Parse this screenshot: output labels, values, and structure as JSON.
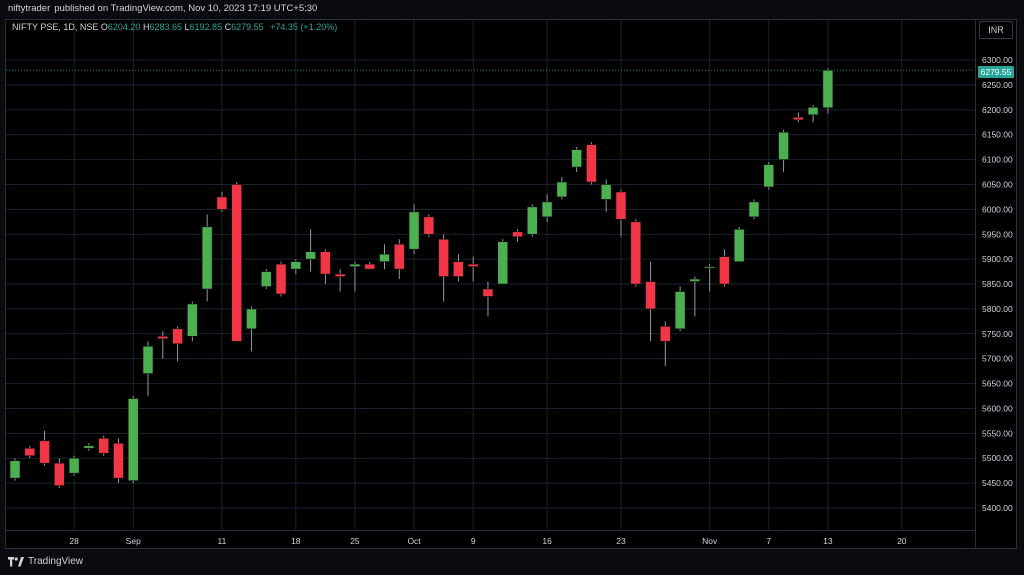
{
  "publisher": {
    "author": "niftytrader",
    "text": "published on TradingView.com, Nov 10, 2023 17:19 UTC+5:30"
  },
  "legend": {
    "symbol": "NIFTY PSE, 1D, NSE",
    "open_label": "O",
    "open": "6204.20",
    "high_label": "H",
    "high": "6283.65",
    "low_label": "L",
    "low": "6192.85",
    "close_label": "C",
    "close": "6279.55",
    "change": "+74.35 (+1.20%)"
  },
  "currency_button": "INR",
  "last_price": "6279.55",
  "footer": {
    "brand": "TradingView"
  },
  "colors": {
    "up": "#26a69a",
    "up_candle": "#4caf50",
    "down": "#f23645",
    "grid": "#1e222d",
    "text": "#d1d4dc"
  },
  "chart_data": {
    "type": "candlestick",
    "yticks": [
      "5400.00",
      "5450.00",
      "5500.00",
      "5550.00",
      "5600.00",
      "5650.00",
      "5700.00",
      "5750.00",
      "5800.00",
      "5850.00",
      "5900.00",
      "5950.00",
      "6000.00",
      "6050.00",
      "6100.00",
      "6150.00",
      "6200.00",
      "6250.00",
      "6300.00"
    ],
    "xticks": [
      {
        "label": "28",
        "index": 4
      },
      {
        "label": "Sep",
        "index": 8
      },
      {
        "label": "11",
        "index": 14
      },
      {
        "label": "18",
        "index": 19
      },
      {
        "label": "25",
        "index": 23
      },
      {
        "label": "Oct",
        "index": 27
      },
      {
        "label": "9",
        "index": 31
      },
      {
        "label": "16",
        "index": 36
      },
      {
        "label": "23",
        "index": 41
      },
      {
        "label": "Nov",
        "index": 47
      },
      {
        "label": "7",
        "index": 51
      },
      {
        "label": "13",
        "index": 55
      },
      {
        "label": "20",
        "index": 60
      }
    ],
    "ylim": [
      5370,
      6320
    ],
    "candles": [
      {
        "o": 5460,
        "h": 5500,
        "l": 5455,
        "c": 5495
      },
      {
        "o": 5520,
        "h": 5525,
        "l": 5500,
        "c": 5505
      },
      {
        "o": 5535,
        "h": 5555,
        "l": 5485,
        "c": 5490
      },
      {
        "o": 5490,
        "h": 5500,
        "l": 5440,
        "c": 5445
      },
      {
        "o": 5470,
        "h": 5505,
        "l": 5465,
        "c": 5500
      },
      {
        "o": 5520,
        "h": 5530,
        "l": 5515,
        "c": 5525
      },
      {
        "o": 5540,
        "h": 5545,
        "l": 5505,
        "c": 5510
      },
      {
        "o": 5530,
        "h": 5540,
        "l": 5450,
        "c": 5460
      },
      {
        "o": 5455,
        "h": 5625,
        "l": 5450,
        "c": 5620
      },
      {
        "o": 5670,
        "h": 5735,
        "l": 5625,
        "c": 5725
      },
      {
        "o": 5745,
        "h": 5755,
        "l": 5700,
        "c": 5740
      },
      {
        "o": 5760,
        "h": 5765,
        "l": 5695,
        "c": 5730
      },
      {
        "o": 5745,
        "h": 5815,
        "l": 5735,
        "c": 5810
      },
      {
        "o": 5840,
        "h": 5990,
        "l": 5815,
        "c": 5965
      },
      {
        "o": 6025,
        "h": 6035,
        "l": 5995,
        "c": 6000
      },
      {
        "o": 6050,
        "h": 6055,
        "l": 5740,
        "c": 5735
      },
      {
        "o": 5760,
        "h": 5805,
        "l": 5715,
        "c": 5800
      },
      {
        "o": 5845,
        "h": 5880,
        "l": 5840,
        "c": 5875
      },
      {
        "o": 5890,
        "h": 5895,
        "l": 5825,
        "c": 5830
      },
      {
        "o": 5880,
        "h": 5900,
        "l": 5870,
        "c": 5895
      },
      {
        "o": 5900,
        "h": 5960,
        "l": 5875,
        "c": 5915
      },
      {
        "o": 5915,
        "h": 5920,
        "l": 5850,
        "c": 5870
      },
      {
        "o": 5870,
        "h": 5880,
        "l": 5835,
        "c": 5865
      },
      {
        "o": 5885,
        "h": 5895,
        "l": 5835,
        "c": 5890
      },
      {
        "o": 5890,
        "h": 5895,
        "l": 5880,
        "c": 5880
      },
      {
        "o": 5895,
        "h": 5930,
        "l": 5880,
        "c": 5910
      },
      {
        "o": 5930,
        "h": 5940,
        "l": 5860,
        "c": 5880
      },
      {
        "o": 5920,
        "h": 6010,
        "l": 5910,
        "c": 5995
      },
      {
        "o": 5985,
        "h": 5990,
        "l": 5945,
        "c": 5950
      },
      {
        "o": 5940,
        "h": 5950,
        "l": 5815,
        "c": 5865
      },
      {
        "o": 5895,
        "h": 5910,
        "l": 5855,
        "c": 5865
      },
      {
        "o": 5890,
        "h": 5905,
        "l": 5855,
        "c": 5885
      },
      {
        "o": 5840,
        "h": 5855,
        "l": 5785,
        "c": 5825
      },
      {
        "o": 5850,
        "h": 5940,
        "l": 5850,
        "c": 5935
      },
      {
        "o": 5955,
        "h": 5960,
        "l": 5935,
        "c": 5945
      },
      {
        "o": 5950,
        "h": 6010,
        "l": 5945,
        "c": 6005
      },
      {
        "o": 5985,
        "h": 6030,
        "l": 5975,
        "c": 6015
      },
      {
        "o": 6025,
        "h": 6065,
        "l": 6020,
        "c": 6055
      },
      {
        "o": 6085,
        "h": 6125,
        "l": 6075,
        "c": 6120
      },
      {
        "o": 6130,
        "h": 6135,
        "l": 6050,
        "c": 6055
      },
      {
        "o": 6020,
        "h": 6060,
        "l": 5995,
        "c": 6050
      },
      {
        "o": 6035,
        "h": 6040,
        "l": 5945,
        "c": 5980
      },
      {
        "o": 5975,
        "h": 5980,
        "l": 5845,
        "c": 5850
      },
      {
        "o": 5855,
        "h": 5895,
        "l": 5735,
        "c": 5800
      },
      {
        "o": 5765,
        "h": 5775,
        "l": 5685,
        "c": 5735
      },
      {
        "o": 5760,
        "h": 5845,
        "l": 5755,
        "c": 5835
      },
      {
        "o": 5855,
        "h": 5865,
        "l": 5785,
        "c": 5860
      },
      {
        "o": 5885,
        "h": 5890,
        "l": 5835,
        "c": 5885
      },
      {
        "o": 5905,
        "h": 5920,
        "l": 5845,
        "c": 5850
      },
      {
        "o": 5895,
        "h": 5965,
        "l": 5895,
        "c": 5960
      },
      {
        "o": 5985,
        "h": 6020,
        "l": 5980,
        "c": 6015
      },
      {
        "o": 6045,
        "h": 6095,
        "l": 6040,
        "c": 6090
      },
      {
        "o": 6100,
        "h": 6160,
        "l": 6075,
        "c": 6155
      },
      {
        "o": 6185,
        "h": 6195,
        "l": 6175,
        "c": 6180
      },
      {
        "o": 6190,
        "h": 6210,
        "l": 6175,
        "c": 6205
      },
      {
        "o": 6204.2,
        "h": 6283.65,
        "l": 6192.85,
        "c": 6279.55
      }
    ]
  }
}
